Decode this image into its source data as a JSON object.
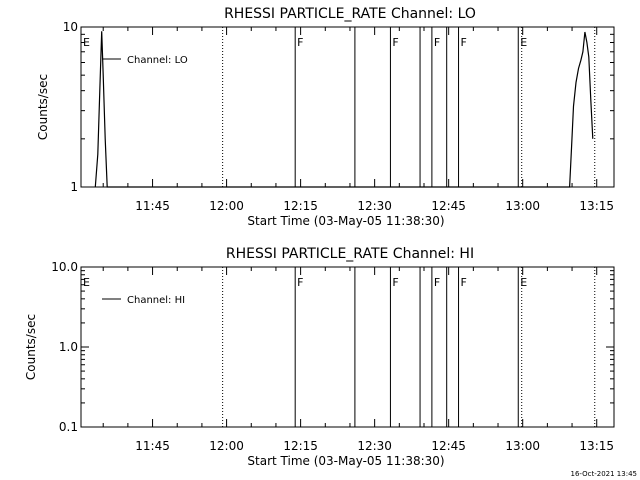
{
  "colors": {
    "background": "#ffffff",
    "foreground": "#000000"
  },
  "footer": {
    "date": "16-Oct-2021 13:45"
  },
  "x_axis": {
    "label": "Start Time (03-May-05 11:38:30)",
    "range_minutes": [
      690.5,
      798.5
    ],
    "ticks": [
      {
        "min": 705,
        "label": "11:45"
      },
      {
        "min": 720,
        "label": "12:00"
      },
      {
        "min": 735,
        "label": "12:15"
      },
      {
        "min": 750,
        "label": "12:30"
      },
      {
        "min": 765,
        "label": "12:45"
      },
      {
        "min": 780,
        "label": "13:00"
      },
      {
        "min": 795,
        "label": "13:15"
      }
    ]
  },
  "chart_data": [
    {
      "type": "line",
      "title": "RHESSI PARTICLE_RATE Channel: LO",
      "ylabel": "Counts/sec",
      "yscale": "log",
      "ylim": [
        1,
        10
      ],
      "yticks": [
        {
          "v": 1,
          "label": "1"
        },
        {
          "v": 10,
          "label": "10"
        }
      ],
      "legend": {
        "placement": "top-left",
        "entries": [
          "Channel: LO"
        ]
      },
      "series": [
        {
          "name": "Channel: LO",
          "x": [
            693.4,
            693.9,
            694.3,
            694.7,
            695.0,
            695.4,
            695.8,
            789.5,
            789.9,
            790.3,
            790.8,
            791.3,
            791.8,
            792.2,
            792.6,
            793.0,
            793.4,
            793.8,
            794.2
          ],
          "y": [
            1.0,
            1.6,
            4.0,
            9.4,
            5.0,
            2.0,
            1.0,
            1.0,
            1.8,
            3.2,
            4.5,
            5.5,
            6.2,
            7.0,
            9.3,
            8.0,
            6.5,
            3.5,
            2.0
          ]
        }
      ],
      "markers": [
        {
          "min": 690.5,
          "label": "E",
          "style": "solid"
        },
        {
          "min": 733.9,
          "label": "F",
          "style": "solid"
        },
        {
          "min": 746.0,
          "label": "",
          "style": "solid"
        },
        {
          "min": 753.2,
          "label": "F",
          "style": "solid"
        },
        {
          "min": 759.2,
          "label": "",
          "style": "solid"
        },
        {
          "min": 761.6,
          "label": "F",
          "style": "solid"
        },
        {
          "min": 764.6,
          "label": "",
          "style": "solid"
        },
        {
          "min": 767.0,
          "label": "F",
          "style": "solid"
        },
        {
          "min": 779.1,
          "label": "E",
          "style": "solid"
        },
        {
          "min": 719.2,
          "label": "",
          "style": "dotted"
        },
        {
          "min": 779.8,
          "label": "",
          "style": "dotted"
        },
        {
          "min": 794.6,
          "label": "",
          "style": "dotted"
        }
      ]
    },
    {
      "type": "line",
      "title": "RHESSI PARTICLE_RATE Channel: HI",
      "ylabel": "Counts/sec",
      "yscale": "log",
      "ylim": [
        0.1,
        10
      ],
      "yticks": [
        {
          "v": 0.1,
          "label": "0.1"
        },
        {
          "v": 1,
          "label": "1.0"
        },
        {
          "v": 10,
          "label": "10.0"
        }
      ],
      "legend": {
        "placement": "top-left",
        "entries": [
          "Channel: HI"
        ]
      },
      "series": [
        {
          "name": "Channel: HI",
          "x": [],
          "y": []
        }
      ],
      "markers": [
        {
          "min": 690.5,
          "label": "E",
          "style": "solid"
        },
        {
          "min": 733.9,
          "label": "F",
          "style": "solid"
        },
        {
          "min": 746.0,
          "label": "",
          "style": "solid"
        },
        {
          "min": 753.2,
          "label": "F",
          "style": "solid"
        },
        {
          "min": 759.2,
          "label": "",
          "style": "solid"
        },
        {
          "min": 761.6,
          "label": "F",
          "style": "solid"
        },
        {
          "min": 764.6,
          "label": "",
          "style": "solid"
        },
        {
          "min": 767.0,
          "label": "F",
          "style": "solid"
        },
        {
          "min": 779.1,
          "label": "E",
          "style": "solid"
        },
        {
          "min": 719.2,
          "label": "",
          "style": "dotted"
        },
        {
          "min": 779.8,
          "label": "",
          "style": "dotted"
        },
        {
          "min": 794.6,
          "label": "",
          "style": "dotted"
        }
      ]
    }
  ]
}
